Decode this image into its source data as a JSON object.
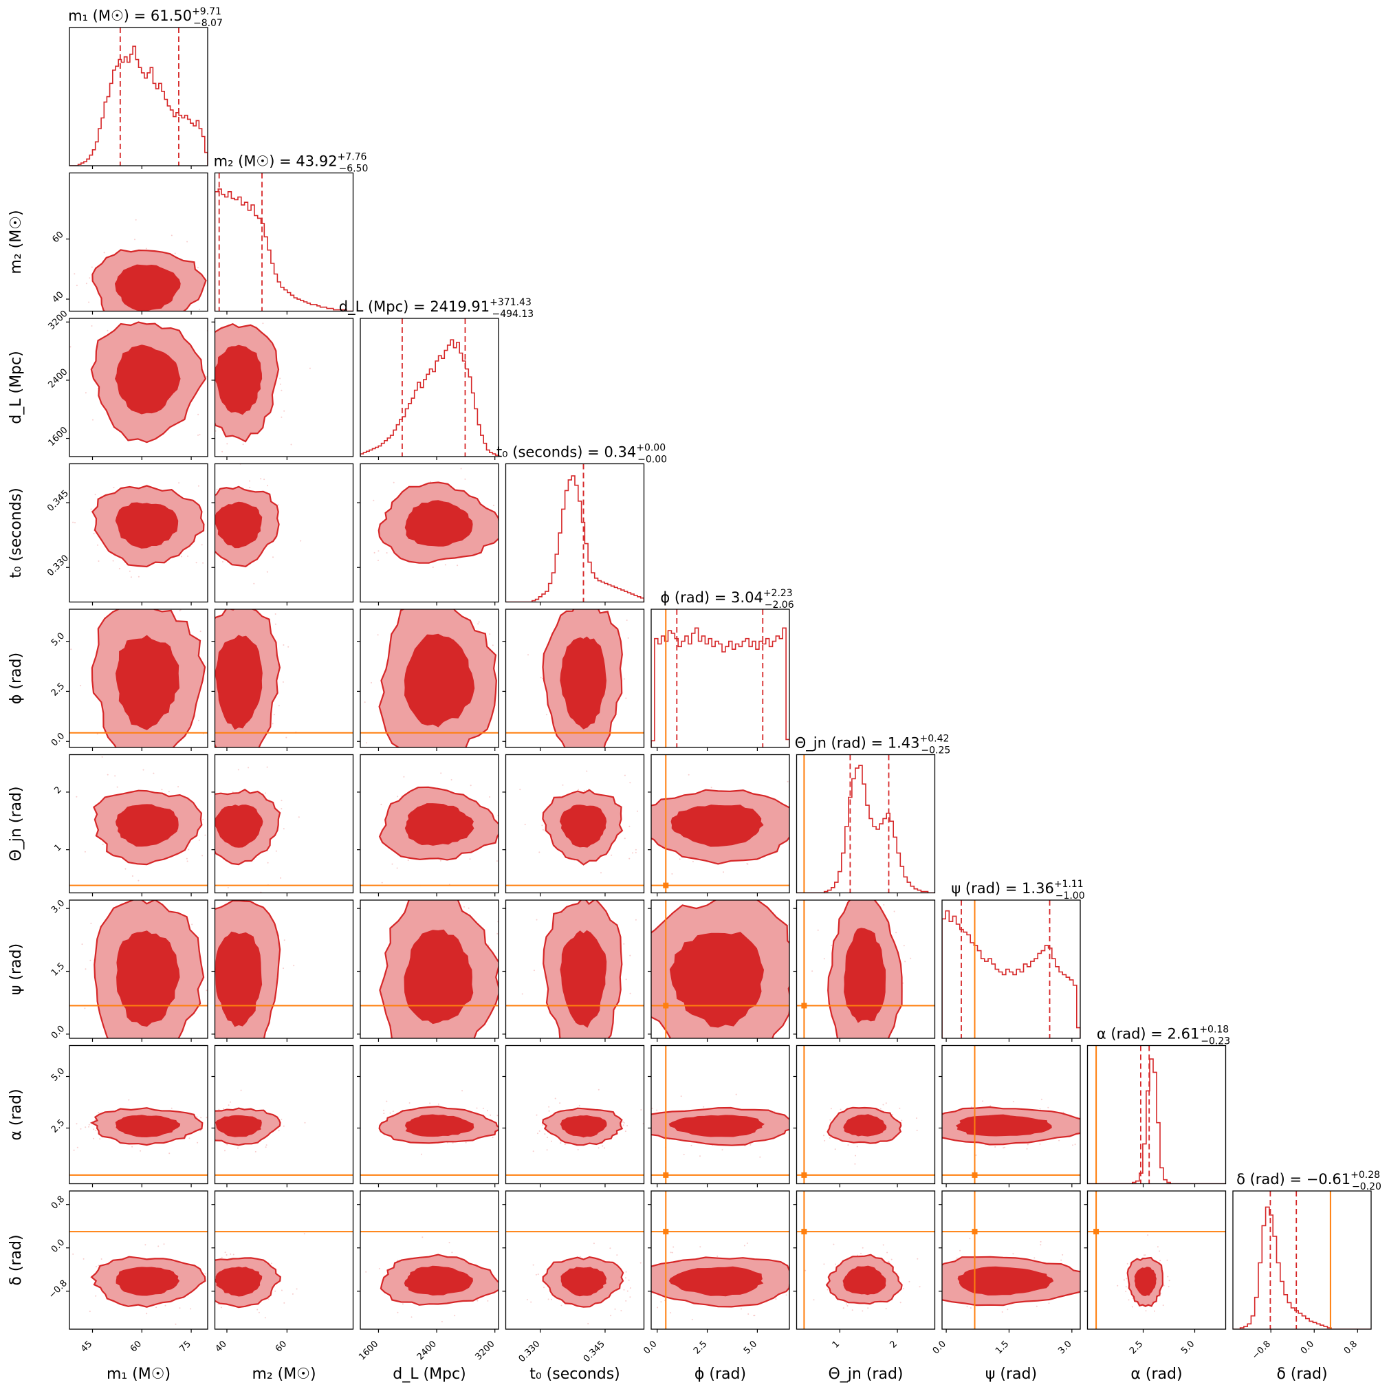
{
  "colors": {
    "posterior": "#d62728",
    "posterior_light": "#eea1a2",
    "truth": "#ff7f0e",
    "axes": "#000000"
  },
  "chart_data": {
    "type": "corner",
    "parameters": [
      {
        "key": "m1",
        "label": "m₁ (M☉)",
        "title_name": "m₁ (M☉)",
        "median": "61.50",
        "plus": "+9.71",
        "minus": "−8.07",
        "range": [
          38,
          80
        ],
        "ticks": [
          45,
          60,
          75
        ],
        "truth": null,
        "hist": [
          0,
          0,
          0,
          0.01,
          0.02,
          0.03,
          0.05,
          0.08,
          0.12,
          0.18,
          0.28,
          0.36,
          0.48,
          0.52,
          0.62,
          0.72,
          0.75,
          0.8,
          0.78,
          0.82,
          0.78,
          0.84,
          0.9,
          0.8,
          0.74,
          0.7,
          0.66,
          0.7,
          0.74,
          0.62,
          0.58,
          0.62,
          0.56,
          0.5,
          0.45,
          0.42,
          0.37,
          0.4,
          0.38,
          0.36,
          0.38,
          0.35,
          0.32,
          0.3,
          0.34,
          0.28,
          0.22,
          0.1
        ]
      },
      {
        "key": "m2",
        "label": "m₂ (M☉)",
        "title_name": "m₂ (M☉)",
        "median": "43.92",
        "plus": "+7.76",
        "minus": "−6.50",
        "range": [
          36,
          82
        ],
        "ticks": [
          40,
          60
        ],
        "truth": null,
        "hist": [
          0.9,
          0.92,
          0.88,
          0.86,
          0.9,
          0.85,
          0.84,
          0.86,
          0.8,
          0.82,
          0.76,
          0.8,
          0.72,
          0.7,
          0.66,
          0.56,
          0.46,
          0.36,
          0.28,
          0.22,
          0.18,
          0.16,
          0.14,
          0.12,
          0.1,
          0.09,
          0.08,
          0.07,
          0.06,
          0.05,
          0.05,
          0.04,
          0.03,
          0.03,
          0.02,
          0.02,
          0.01,
          0.01,
          0.01,
          0.01,
          0.0,
          0.0
        ]
      },
      {
        "key": "dL",
        "label": "d_L (Mpc)",
        "title_name": "d_L (Mpc)",
        "median": "2419.91",
        "plus": "+371.43",
        "minus": "−494.13",
        "range": [
          1350,
          3250
        ],
        "ticks": [
          1600,
          2400,
          3200
        ],
        "truth": null,
        "hist": [
          0.02,
          0.03,
          0.04,
          0.05,
          0.06,
          0.07,
          0.08,
          0.1,
          0.12,
          0.14,
          0.16,
          0.2,
          0.24,
          0.28,
          0.3,
          0.36,
          0.4,
          0.44,
          0.5,
          0.56,
          0.52,
          0.58,
          0.62,
          0.66,
          0.64,
          0.72,
          0.76,
          0.74,
          0.8,
          0.84,
          0.88,
          0.82,
          0.86,
          0.78,
          0.72,
          0.66,
          0.6,
          0.48,
          0.36,
          0.24,
          0.16,
          0.1,
          0.05,
          0.03,
          0.02,
          0.01
        ]
      },
      {
        "key": "t0",
        "label": "t₀ (seconds)",
        "title_name": "t₀ (seconds)",
        "median": "0.34",
        "plus": "+0.00",
        "minus": "−0.00",
        "range": [
          0.322,
          0.354
        ],
        "ticks": [
          0.33,
          0.345
        ],
        "tick_labels": [
          "0.330",
          "0.345"
        ],
        "truth": null,
        "hist": [
          0,
          0,
          0,
          0,
          0,
          0,
          0,
          0,
          0.01,
          0.02,
          0.04,
          0.06,
          0.08,
          0.14,
          0.22,
          0.36,
          0.52,
          0.7,
          0.84,
          0.92,
          0.95,
          0.88,
          0.76,
          0.6,
          0.44,
          0.3,
          0.22,
          0.18,
          0.16,
          0.15,
          0.14,
          0.13,
          0.12,
          0.11,
          0.1,
          0.09,
          0.08,
          0.07,
          0.06,
          0.05,
          0.04,
          0.03
        ]
      },
      {
        "key": "phi",
        "label": "ϕ (rad)",
        "title_name": "ϕ (rad)",
        "median": "3.04",
        "plus": "+2.23",
        "minus": "−2.06",
        "range": [
          -0.3,
          6.6
        ],
        "ticks": [
          0,
          2.5,
          5
        ],
        "tick_labels": [
          "0.0",
          "2.5",
          "5.0"
        ],
        "truth": 0.43,
        "hist": [
          0.05,
          0.82,
          0.78,
          0.84,
          0.8,
          0.88,
          0.86,
          0.82,
          0.76,
          0.8,
          0.84,
          0.78,
          0.86,
          0.9,
          0.8,
          0.84,
          0.78,
          0.82,
          0.76,
          0.8,
          0.78,
          0.72,
          0.76,
          0.8,
          0.74,
          0.78,
          0.76,
          0.8,
          0.82,
          0.76,
          0.8,
          0.74,
          0.8,
          0.78,
          0.82,
          0.76,
          0.8,
          0.84,
          0.82,
          0.9,
          0.06
        ]
      },
      {
        "key": "theta_jn",
        "label": "Θ_jn (rad)",
        "title_name": "Θ_jn (rad)",
        "median": "1.43",
        "plus": "+0.42",
        "minus": "−0.25",
        "range": [
          0.25,
          2.65
        ],
        "ticks": [
          1,
          2
        ],
        "truth": 0.38,
        "hist": [
          0,
          0,
          0,
          0,
          0,
          0,
          0,
          0,
          0.01,
          0.02,
          0.04,
          0.08,
          0.16,
          0.3,
          0.5,
          0.72,
          0.86,
          0.94,
          0.96,
          0.82,
          0.66,
          0.56,
          0.5,
          0.48,
          0.52,
          0.56,
          0.6,
          0.54,
          0.42,
          0.3,
          0.2,
          0.12,
          0.08,
          0.05,
          0.03,
          0.02,
          0.01,
          0.01,
          0,
          0
        ]
      },
      {
        "key": "psi",
        "label": "ψ (rad)",
        "title_name": "ψ (rad)",
        "median": "1.36",
        "plus": "+1.11",
        "minus": "−1.00",
        "range": [
          -0.1,
          3.2
        ],
        "ticks": [
          0,
          1.5,
          3
        ],
        "tick_labels": [
          "0.0",
          "1.5",
          "3.0"
        ],
        "truth": 0.68,
        "hist": [
          0.9,
          0.96,
          0.88,
          0.92,
          0.86,
          0.82,
          0.8,
          0.78,
          0.72,
          0.7,
          0.66,
          0.6,
          0.58,
          0.6,
          0.56,
          0.52,
          0.5,
          0.48,
          0.52,
          0.5,
          0.48,
          0.52,
          0.5,
          0.56,
          0.54,
          0.58,
          0.6,
          0.64,
          0.66,
          0.7,
          0.68,
          0.6,
          0.54,
          0.5,
          0.48,
          0.46,
          0.44,
          0.4,
          0.08
        ]
      },
      {
        "key": "alpha",
        "label": "α (rad)",
        "title_name": "α (rad)",
        "median": "2.61",
        "plus": "+0.18",
        "minus": "−0.23",
        "range": [
          -0.2,
          6.5
        ],
        "ticks": [
          2.5,
          5
        ],
        "tick_labels": [
          "2.5",
          "5.0"
        ],
        "truth": 0.22,
        "hist": [
          0,
          0,
          0,
          0,
          0,
          0,
          0,
          0,
          0,
          0,
          0,
          0,
          0,
          0.01,
          0.02,
          0.08,
          0.3,
          0.7,
          0.94,
          0.84,
          0.46,
          0.12,
          0.03,
          0.01,
          0,
          0,
          0,
          0,
          0,
          0,
          0,
          0,
          0,
          0,
          0,
          0,
          0,
          0,
          0,
          0
        ]
      },
      {
        "key": "delta",
        "label": "δ (rad)",
        "title_name": "δ (rad)",
        "median": "−0.61",
        "plus": "+0.28",
        "minus": "−0.20",
        "range": [
          -1.5,
          1.05
        ],
        "ticks": [
          -0.8,
          0,
          0.8
        ],
        "tick_labels": [
          "−0.8",
          "0.0",
          "0.8"
        ],
        "truth": 0.3,
        "hist": [
          0,
          0,
          0.01,
          0.02,
          0.04,
          0.1,
          0.24,
          0.5,
          0.78,
          0.92,
          0.86,
          0.7,
          0.5,
          0.36,
          0.26,
          0.2,
          0.16,
          0.14,
          0.12,
          0.1,
          0.08,
          0.06,
          0.05,
          0.04,
          0.03,
          0.02,
          0.01,
          0,
          0,
          0,
          0,
          0,
          0,
          0,
          0,
          0,
          0,
          0
        ]
      }
    ],
    "contours_2d": "filled 39% and 86% credible regions with scattered samples",
    "truth_markers": true
  }
}
